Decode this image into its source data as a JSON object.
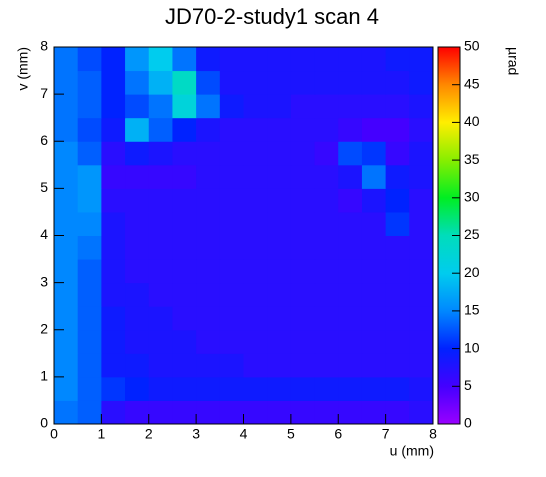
{
  "chart_data": {
    "type": "heatmap",
    "title": "JD70-2-study1 scan 4",
    "xlabel": "u (mm)",
    "ylabel": "v (mm)",
    "zlabel": "µrad",
    "xlim": [
      0,
      8
    ],
    "ylim": [
      0,
      8
    ],
    "zlim": [
      0,
      50
    ],
    "xticks": [
      0,
      1,
      2,
      3,
      4,
      5,
      6,
      7,
      8
    ],
    "yticks": [
      0,
      1,
      2,
      3,
      4,
      5,
      6,
      7,
      8
    ],
    "zticks": [
      0,
      5,
      10,
      15,
      20,
      25,
      30,
      35,
      40,
      45,
      50
    ],
    "colorscale": [
      "#9900ff",
      "#4400ff",
      "#0022ff",
      "#0088ff",
      "#00ccee",
      "#00ddbb",
      "#00ee22",
      "#88ee00",
      "#ffee00",
      "#ff8800",
      "#ff0000"
    ],
    "z": [
      [
        14,
        13,
        7,
        6,
        6,
        6,
        6,
        6,
        6,
        6,
        6,
        6,
        6,
        6,
        6,
        7
      ],
      [
        15,
        13,
        11,
        10,
        9,
        9,
        9,
        9,
        9,
        9,
        9,
        9,
        9,
        9,
        9,
        8
      ],
      [
        15,
        13,
        9,
        9,
        8,
        8,
        8,
        8,
        7,
        7,
        7,
        7,
        7,
        7,
        7,
        7
      ],
      [
        15,
        13,
        9,
        8,
        8,
        8,
        7,
        7,
        7,
        7,
        7,
        7,
        7,
        7,
        7,
        7
      ],
      [
        15,
        13,
        9,
        8,
        8,
        7,
        7,
        7,
        7,
        7,
        7,
        7,
        7,
        7,
        7,
        7
      ],
      [
        15,
        13,
        8,
        8,
        7,
        7,
        7,
        7,
        7,
        7,
        7,
        7,
        7,
        7,
        7,
        7
      ],
      [
        15,
        13,
        8,
        7,
        7,
        7,
        7,
        7,
        7,
        7,
        7,
        7,
        7,
        7,
        7,
        7
      ],
      [
        15,
        14,
        8,
        7,
        7,
        7,
        7,
        7,
        7,
        7,
        7,
        7,
        7,
        7,
        7,
        7
      ],
      [
        15,
        15,
        8,
        7,
        7,
        7,
        7,
        7,
        7,
        7,
        7,
        7,
        7,
        7,
        11,
        7
      ],
      [
        15,
        16,
        7,
        7,
        7,
        7,
        7,
        7,
        7,
        7,
        7,
        7,
        6,
        8,
        10,
        7
      ],
      [
        15,
        16,
        6,
        6,
        6,
        6,
        7,
        7,
        7,
        7,
        7,
        7,
        8,
        14,
        9,
        8
      ],
      [
        15,
        13,
        7,
        9,
        8,
        7,
        7,
        7,
        7,
        7,
        7,
        6,
        12,
        11,
        6,
        8
      ],
      [
        14,
        12,
        9,
        18,
        13,
        10,
        8,
        7,
        7,
        7,
        7,
        7,
        6,
        5,
        5,
        7
      ],
      [
        14,
        13,
        10,
        12,
        14,
        22,
        14,
        9,
        8,
        8,
        7,
        7,
        7,
        7,
        7,
        8
      ],
      [
        14,
        13,
        10,
        14,
        18,
        24,
        12,
        8,
        8,
        8,
        8,
        8,
        8,
        8,
        8,
        9
      ],
      [
        14,
        12,
        10,
        16,
        20,
        14,
        9,
        8,
        8,
        8,
        8,
        8,
        8,
        8,
        9,
        9
      ]
    ]
  }
}
